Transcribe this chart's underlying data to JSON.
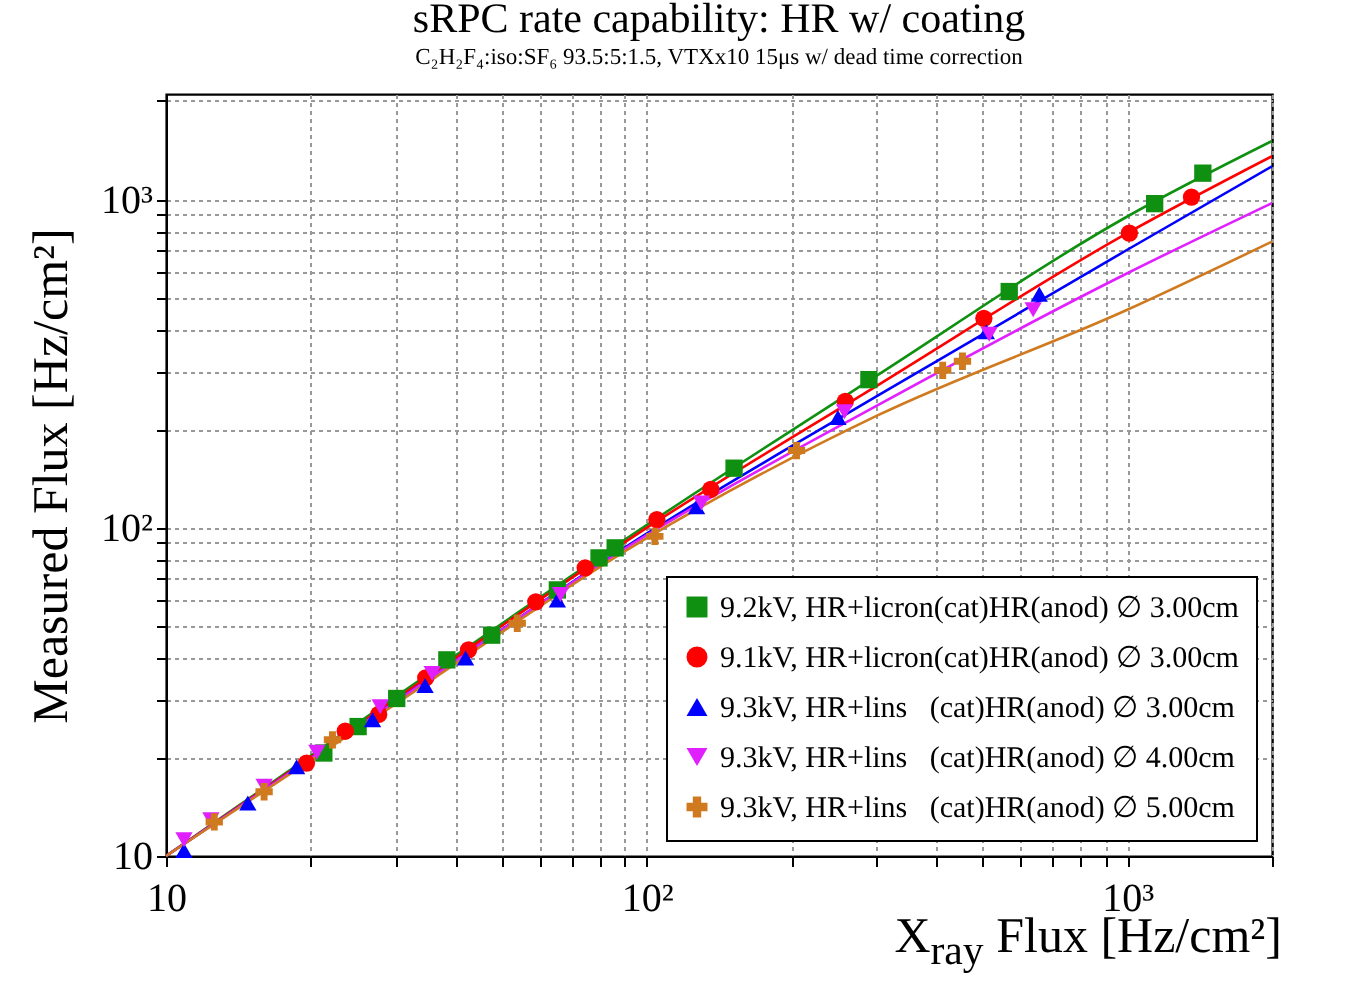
{
  "chart_data": {
    "type": "scatter",
    "title": "sRPC rate capability: HR w/ coating",
    "subtitle": "C₂H₂F₄:iso:SF₆ 93.5:5:1.5, VTXx10 15μs w/ dead time correction",
    "xlabel": "X$_{ray}$ Flux [Hz/cm²]",
    "ylabel": "Measured Flux [Hz/cm²]",
    "log": "xy",
    "grid": true,
    "legend": "bottom right",
    "xlim": [
      10,
      2000
    ],
    "ylim": [
      10,
      2100
    ],
    "xticks": [
      10,
      {
        "value": 20,
        "label": null
      },
      {
        "value": 30,
        "label": null
      },
      {
        "value": 40,
        "label": null
      },
      {
        "value": 50,
        "label": null
      },
      {
        "value": 60,
        "label": null
      },
      {
        "value": 70,
        "label": null
      },
      {
        "value": 80,
        "label": null
      },
      {
        "value": 90,
        "label": null
      },
      {
        "value": 100,
        "label": "10²"
      },
      {
        "value": 200,
        "label": null
      },
      {
        "value": 300,
        "label": null
      },
      {
        "value": 400,
        "label": null
      },
      {
        "value": 500,
        "label": null
      },
      {
        "value": 600,
        "label": null
      },
      {
        "value": 700,
        "label": null
      },
      {
        "value": 800,
        "label": null
      },
      {
        "value": 900,
        "label": null
      },
      {
        "value": 1000,
        "label": "10³"
      },
      {
        "value": 2000,
        "label": null
      }
    ],
    "yticks": [
      10,
      {
        "value": 20,
        "label": null
      },
      {
        "value": 30,
        "label": null
      },
      {
        "value": 40,
        "label": null
      },
      {
        "value": 50,
        "label": null
      },
      {
        "value": 60,
        "label": null
      },
      {
        "value": 70,
        "label": null
      },
      {
        "value": 80,
        "label": null
      },
      {
        "value": 90,
        "label": null
      },
      {
        "value": 100,
        "label": "10²"
      },
      {
        "value": 200,
        "label": null
      },
      {
        "value": 300,
        "label": null
      },
      {
        "value": 400,
        "label": null
      },
      {
        "value": 500,
        "label": null
      },
      {
        "value": 600,
        "label": null
      },
      {
        "value": 700,
        "label": null
      },
      {
        "value": 800,
        "label": null
      },
      {
        "value": 900,
        "label": null
      },
      {
        "value": 1000,
        "label": "10³"
      },
      {
        "value": 2000,
        "label": null
      }
    ],
    "series": [
      {
        "type": "line",
        "color": "#109010",
        "x": [
          10,
          30,
          100,
          300,
          1000,
          2000
        ],
        "values": [
          10,
          30.5,
          102,
          290,
          889,
          1510
        ]
      },
      {
        "type": "line",
        "color": "#ff0000",
        "x": [
          10,
          30,
          100,
          300,
          1000,
          2000
        ],
        "values": [
          10,
          30,
          100,
          270,
          791,
          1357
        ]
      },
      {
        "type": "line",
        "color": "#0000ff",
        "x": [
          10,
          30,
          100,
          300,
          1000,
          2000
        ],
        "values": [
          10,
          29.5,
          96,
          251,
          704,
          1264
        ]
      },
      {
        "type": "line",
        "color": "#e020ff",
        "x": [
          10,
          30,
          100,
          300,
          1000,
          2000
        ],
        "values": [
          10,
          29.5,
          95,
          235,
          597,
          977
        ]
      },
      {
        "type": "line",
        "color": "#d07a20",
        "x": [
          10,
          30,
          100,
          300,
          1000,
          2000
        ],
        "values": [
          10,
          29,
          93,
          219,
          462,
          745
        ]
      },
      {
        "name": "9.2kV, HR+licron(cat)HR(anod) ∅ 3.00cm",
        "marker": "square",
        "color": "#109010",
        "x": [
          21.3,
          25.1,
          30.2,
          38.4,
          47.6,
          65.2,
          79.6,
          86,
          152,
          290,
          568,
          1140,
          1436
        ],
        "values": [
          20.6,
          24.8,
          30.2,
          39.6,
          47.1,
          64.7,
          81,
          86.9,
          152,
          283,
          525,
          973,
          1205
        ]
      },
      {
        "name": "9.1kV, HR+licron(cat)HR(anod) ∅ 3.00cm",
        "marker": "circle",
        "color": "#ff0000",
        "x": [
          19.6,
          23.6,
          27.7,
          34.7,
          42.6,
          58.8,
          74.5,
          105,
          136,
          259,
          503,
          1010,
          1360
        ],
        "values": [
          19.2,
          24,
          27,
          34.9,
          42.5,
          59.5,
          75.5,
          106,
          131,
          243,
          435,
          791,
          1019
        ]
      },
      {
        "name": "9.3kV, HR+lins   (cat)HR(anod) ∅ 3.00cm",
        "marker": "triangle",
        "color": "#0000ff",
        "x": [
          10.9,
          14.8,
          18.7,
          26.9,
          34.6,
          42,
          65.2,
          127,
          250,
          509,
          656
        ],
        "values": [
          10.4,
          14.5,
          18.7,
          26,
          33.1,
          40.1,
          60.3,
          116,
          217,
          396,
          515
        ]
      },
      {
        "name": "9.3kV, HR+lins   (cat)HR(anod) ∅ 4.00cm",
        "marker": "triangle-down",
        "color": "#e020ff",
        "x": [
          10.9,
          12.4,
          16,
          20.6,
          27.9,
          35.8,
          66.2,
          130,
          258,
          516,
          637
        ],
        "values": [
          11.2,
          12.9,
          16.3,
          20.7,
          28.5,
          36,
          62.7,
          119,
          226,
          389,
          462
        ]
      },
      {
        "name": "9.3kV, HR+lins   (cat)HR(anod) ∅ 5.00cm",
        "marker": "cross",
        "color": "#d07a20",
        "x": [
          12.6,
          16,
          22.2,
          53.8,
          104,
          205,
          413,
          454
        ],
        "values": [
          12.7,
          15.7,
          22.6,
          51.2,
          94.2,
          172,
          302,
          322
        ]
      }
    ]
  }
}
